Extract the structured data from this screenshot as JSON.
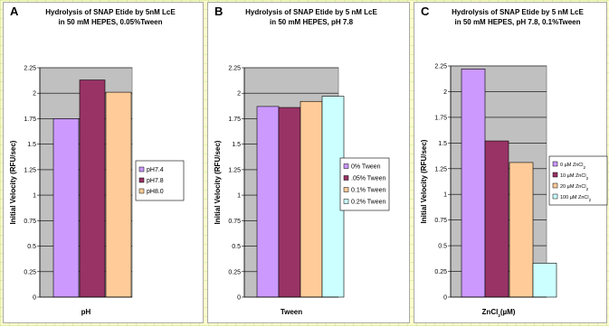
{
  "colors": {
    "plot_bg": "#c0c0c0",
    "purple": "#cc99ff",
    "maroon": "#993366",
    "peach": "#ffcc99",
    "cyan": "#ccffff",
    "page_bg": "#ffffcc",
    "grid_line": "#aad26e"
  },
  "chart_data": [
    {
      "panel": "A",
      "type": "bar",
      "title": [
        "Hydrolysis of SNAP Etide by 5nM LcE",
        "in 50 mM HEPES, 0.05%Tween"
      ],
      "xlabel": "pH",
      "ylabel": "Initial Velocity (RFU/sec)",
      "ylim": [
        0,
        2.25
      ],
      "yticks": [
        "0",
        "0.25",
        "0.5",
        "0.75",
        "1",
        "1.25",
        "1.5",
        "1.75",
        "2",
        "2.25"
      ],
      "grid": true,
      "legend_position": "right",
      "categories": [
        ""
      ],
      "series": [
        {
          "name": "pH7.4",
          "values": [
            1.75
          ],
          "color": "#cc99ff"
        },
        {
          "name": "pH7.8",
          "values": [
            2.13
          ],
          "color": "#993366"
        },
        {
          "name": "pH8.0",
          "values": [
            2.01
          ],
          "color": "#ffcc99"
        }
      ]
    },
    {
      "panel": "B",
      "type": "bar",
      "title": [
        "Hydrolysis of SNAP Etide by 5 nM LcE",
        "in 50 mM HEPES, pH 7.8"
      ],
      "xlabel": "Tween",
      "ylabel": "Initial Velocity (RFU/sec)",
      "ylim": [
        0,
        2.25
      ],
      "yticks": [
        "0",
        "0.25",
        "0.5",
        "0.75",
        "1",
        "1.25",
        "1.5",
        "1.75",
        "2",
        "2.25"
      ],
      "grid": true,
      "legend_position": "right",
      "categories": [
        ""
      ],
      "series": [
        {
          "name": "0% Tween",
          "values": [
            1.87
          ],
          "color": "#cc99ff"
        },
        {
          "name": ".05% Tween",
          "values": [
            1.86
          ],
          "color": "#993366"
        },
        {
          "name": "0.1% Tween",
          "values": [
            1.92
          ],
          "color": "#ffcc99"
        },
        {
          "name": "0.2% Tween",
          "values": [
            1.97
          ],
          "color": "#ccffff"
        }
      ]
    },
    {
      "panel": "C",
      "type": "bar",
      "title": [
        "Hydrolysis of SNAP Etide by 5 nM LcE",
        "in 50 mM HEPES, pH 7.8, 0.1%Tween"
      ],
      "xlabel": "ZnCl2(µM)",
      "ylabel": "Initial Velocity (RFU/sec)",
      "ylim": [
        0,
        2.25
      ],
      "yticks": [
        "0",
        "0.25",
        "0.5",
        "0.75",
        "1",
        "1.25",
        "1.5",
        "1.75",
        "2",
        "2.25"
      ],
      "grid": true,
      "legend_position": "right",
      "categories": [
        ""
      ],
      "series": [
        {
          "name": "0 µM ZnCl2",
          "values": [
            2.22
          ],
          "color": "#cc99ff"
        },
        {
          "name": "10 µM ZnCl2",
          "values": [
            1.52
          ],
          "color": "#993366"
        },
        {
          "name": "20 µM ZnCl2",
          "values": [
            1.31
          ],
          "color": "#ffcc99"
        },
        {
          "name": "100 µM ZnCl2",
          "values": [
            0.33
          ],
          "color": "#ccffff"
        }
      ]
    }
  ]
}
